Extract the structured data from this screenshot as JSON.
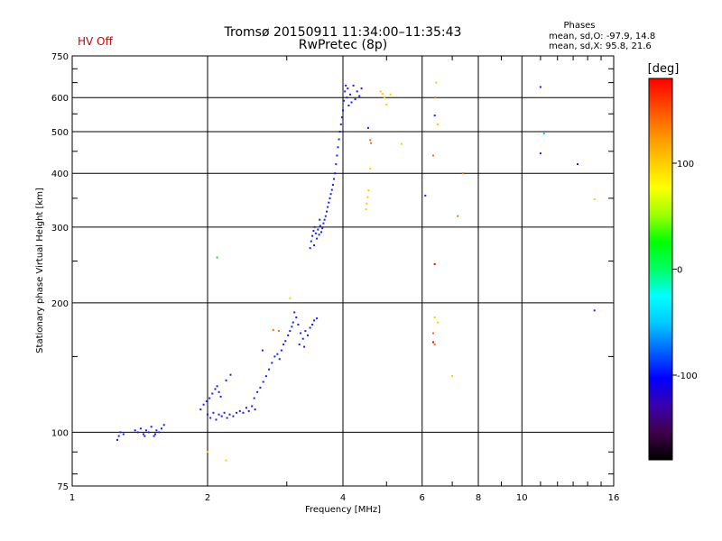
{
  "chart_data": {
    "type": "scatter",
    "title_line1": "Tromsø 20150911 11:34:00–11:35:43",
    "title_line2": "RwPretec (8p)",
    "status_text": "HV Off",
    "phases": {
      "heading": "Phases",
      "line_o": "mean, sd,O: -97.9, 14.8",
      "line_x": "mean, sd,X:  95.8, 21.6"
    },
    "xlabel": "Frequency [MHz]",
    "ylabel": "Stationary phase Virtual Height [km]",
    "x_scale": "log",
    "y_scale": "log",
    "xlim": [
      1,
      16
    ],
    "ylim": [
      75,
      750
    ],
    "x_ticks": [
      {
        "value": 1,
        "label": "1"
      },
      {
        "value": 2,
        "label": "2"
      },
      {
        "value": 4,
        "label": "4"
      },
      {
        "value": 6,
        "label": "6"
      },
      {
        "value": 8,
        "label": "8"
      },
      {
        "value": 10,
        "label": "10"
      },
      {
        "value": 16,
        "label": "16"
      }
    ],
    "y_ticks": [
      {
        "value": 75,
        "label": "75"
      },
      {
        "value": 100,
        "label": "100"
      },
      {
        "value": 200,
        "label": "200"
      },
      {
        "value": 300,
        "label": "300"
      },
      {
        "value": 400,
        "label": "400"
      },
      {
        "value": 500,
        "label": "500"
      },
      {
        "value": 600,
        "label": "600"
      },
      {
        "value": 750,
        "label": "750"
      }
    ],
    "grid": true,
    "colorbar": {
      "unit": "[deg]",
      "range": [
        -180,
        180
      ],
      "ticks": [
        {
          "value": 100,
          "label": "100"
        },
        {
          "value": 0,
          "label": "0"
        },
        {
          "value": -100,
          "label": "-100"
        }
      ],
      "stops": [
        "#000000",
        "#40004a",
        "#3a00b0",
        "#0000ff",
        "#0064ff",
        "#00c8ff",
        "#00ffff",
        "#00ff64",
        "#00ff00",
        "#a0ff00",
        "#ffff00",
        "#ffc800",
        "#ff8c00",
        "#ff4600",
        "#ff0000"
      ]
    },
    "series": [
      {
        "color": "#1a1aff",
        "points": [
          [
            1.26,
            96
          ],
          [
            1.27,
            98
          ],
          [
            1.28,
            100
          ],
          [
            1.3,
            99
          ],
          [
            1.38,
            101
          ],
          [
            1.4,
            100
          ],
          [
            1.42,
            102
          ],
          [
            1.44,
            99
          ],
          [
            1.46,
            101
          ],
          [
            1.48,
            100
          ],
          [
            1.5,
            103
          ],
          [
            1.52,
            98
          ],
          [
            1.54,
            101
          ],
          [
            1.56,
            100
          ],
          [
            1.58,
            102
          ],
          [
            1.6,
            104
          ],
          [
            1.45,
            98
          ],
          [
            1.53,
            99
          ],
          [
            1.93,
            113
          ],
          [
            1.96,
            116
          ],
          [
            1.99,
            118
          ],
          [
            2.02,
            120
          ],
          [
            2.05,
            123
          ],
          [
            2.08,
            126
          ],
          [
            2.1,
            128
          ],
          [
            2.12,
            124
          ],
          [
            2.14,
            121
          ],
          [
            2.0,
            110
          ],
          [
            2.03,
            108
          ],
          [
            2.06,
            111
          ],
          [
            2.09,
            107
          ],
          [
            2.12,
            110
          ],
          [
            2.15,
            109
          ],
          [
            2.18,
            111
          ],
          [
            2.21,
            108
          ],
          [
            2.24,
            110
          ],
          [
            2.28,
            109
          ],
          [
            2.32,
            111
          ],
          [
            2.36,
            112
          ],
          [
            2.4,
            111
          ],
          [
            2.44,
            114
          ],
          [
            2.47,
            112
          ],
          [
            2.51,
            115
          ],
          [
            2.55,
            113
          ],
          [
            2.2,
            132
          ],
          [
            2.25,
            136
          ],
          [
            2.54,
            120
          ],
          [
            2.58,
            124
          ],
          [
            2.62,
            127
          ],
          [
            2.66,
            131
          ],
          [
            2.7,
            135
          ],
          [
            2.74,
            140
          ],
          [
            2.78,
            145
          ],
          [
            2.82,
            150
          ],
          [
            2.86,
            152
          ],
          [
            2.89,
            148
          ],
          [
            2.92,
            155
          ],
          [
            2.95,
            160
          ],
          [
            2.98,
            163
          ],
          [
            3.02,
            168
          ],
          [
            3.05,
            172
          ],
          [
            3.08,
            176
          ],
          [
            3.1,
            180
          ],
          [
            3.12,
            190
          ],
          [
            3.15,
            185
          ],
          [
            3.18,
            178
          ],
          [
            3.22,
            170
          ],
          [
            3.26,
            165
          ],
          [
            3.3,
            172
          ],
          [
            3.34,
            168
          ],
          [
            3.38,
            175
          ],
          [
            3.42,
            178
          ],
          [
            3.45,
            182
          ],
          [
            3.5,
            184
          ],
          [
            2.65,
            155
          ],
          [
            3.2,
            160
          ],
          [
            3.28,
            158
          ],
          [
            3.38,
            268
          ],
          [
            3.4,
            278
          ],
          [
            3.42,
            286
          ],
          [
            3.44,
            294
          ],
          [
            3.46,
            300
          ],
          [
            3.48,
            290
          ],
          [
            3.5,
            282
          ],
          [
            3.52,
            296
          ],
          [
            3.54,
            288
          ],
          [
            3.56,
            302
          ],
          [
            3.58,
            292
          ],
          [
            3.6,
            298
          ],
          [
            3.62,
            306
          ],
          [
            3.64,
            312
          ],
          [
            3.66,
            318
          ],
          [
            3.68,
            326
          ],
          [
            3.7,
            334
          ],
          [
            3.72,
            342
          ],
          [
            3.74,
            350
          ],
          [
            3.76,
            358
          ],
          [
            3.78,
            366
          ],
          [
            3.8,
            376
          ],
          [
            3.82,
            388
          ],
          [
            3.84,
            400
          ],
          [
            3.86,
            420
          ],
          [
            3.88,
            440
          ],
          [
            3.9,
            460
          ],
          [
            3.92,
            480
          ],
          [
            3.94,
            500
          ],
          [
            3.96,
            520
          ],
          [
            3.98,
            540
          ],
          [
            4.0,
            560
          ],
          [
            4.02,
            590
          ],
          [
            4.04,
            620
          ],
          [
            4.06,
            640
          ],
          [
            4.08,
            600
          ],
          [
            4.1,
            630
          ],
          [
            4.12,
            575
          ],
          [
            4.15,
            610
          ],
          [
            4.18,
            585
          ],
          [
            4.22,
            640
          ],
          [
            4.26,
            595
          ],
          [
            4.3,
            620
          ],
          [
            4.35,
            605
          ],
          [
            4.4,
            630
          ],
          [
            3.55,
            312
          ],
          [
            3.45,
            272
          ],
          [
            4.55,
            510
          ],
          [
            6.1,
            355
          ],
          [
            6.4,
            545
          ],
          [
            11.0,
            635
          ],
          [
            11.0,
            445
          ],
          [
            13.3,
            420
          ],
          [
            14.5,
            192
          ]
        ]
      },
      {
        "color": "#ffc800",
        "points": [
          [
            4.5,
            330
          ],
          [
            4.52,
            340
          ],
          [
            4.54,
            352
          ],
          [
            4.56,
            365
          ],
          [
            4.6,
            410
          ],
          [
            4.85,
            620
          ],
          [
            4.9,
            612
          ],
          [
            4.95,
            600
          ],
          [
            5.0,
            578
          ],
          [
            5.1,
            610
          ],
          [
            5.4,
            468
          ],
          [
            6.4,
            185
          ],
          [
            6.45,
            650
          ],
          [
            6.5,
            180
          ],
          [
            6.5,
            520
          ],
          [
            7.0,
            135
          ],
          [
            14.5,
            348
          ],
          [
            2.0,
            90
          ],
          [
            2.2,
            86
          ],
          [
            3.05,
            205
          ]
        ]
      },
      {
        "color": "#ff6a00",
        "points": [
          [
            4.6,
            478
          ],
          [
            4.62,
            470
          ],
          [
            6.35,
            170
          ],
          [
            6.35,
            440
          ],
          [
            6.4,
            160
          ],
          [
            6.42,
            600
          ],
          [
            7.2,
            318
          ],
          [
            7.4,
            400
          ],
          [
            2.8,
            173
          ],
          [
            2.88,
            172
          ]
        ]
      },
      {
        "color": "#e60000",
        "points": [
          [
            6.4,
            246
          ],
          [
            6.35,
            162
          ]
        ]
      },
      {
        "color": "#22dd22",
        "points": [
          [
            2.1,
            255
          ]
        ]
      },
      {
        "color": "#00c8ff",
        "points": [
          [
            11.2,
            495
          ]
        ]
      }
    ]
  }
}
